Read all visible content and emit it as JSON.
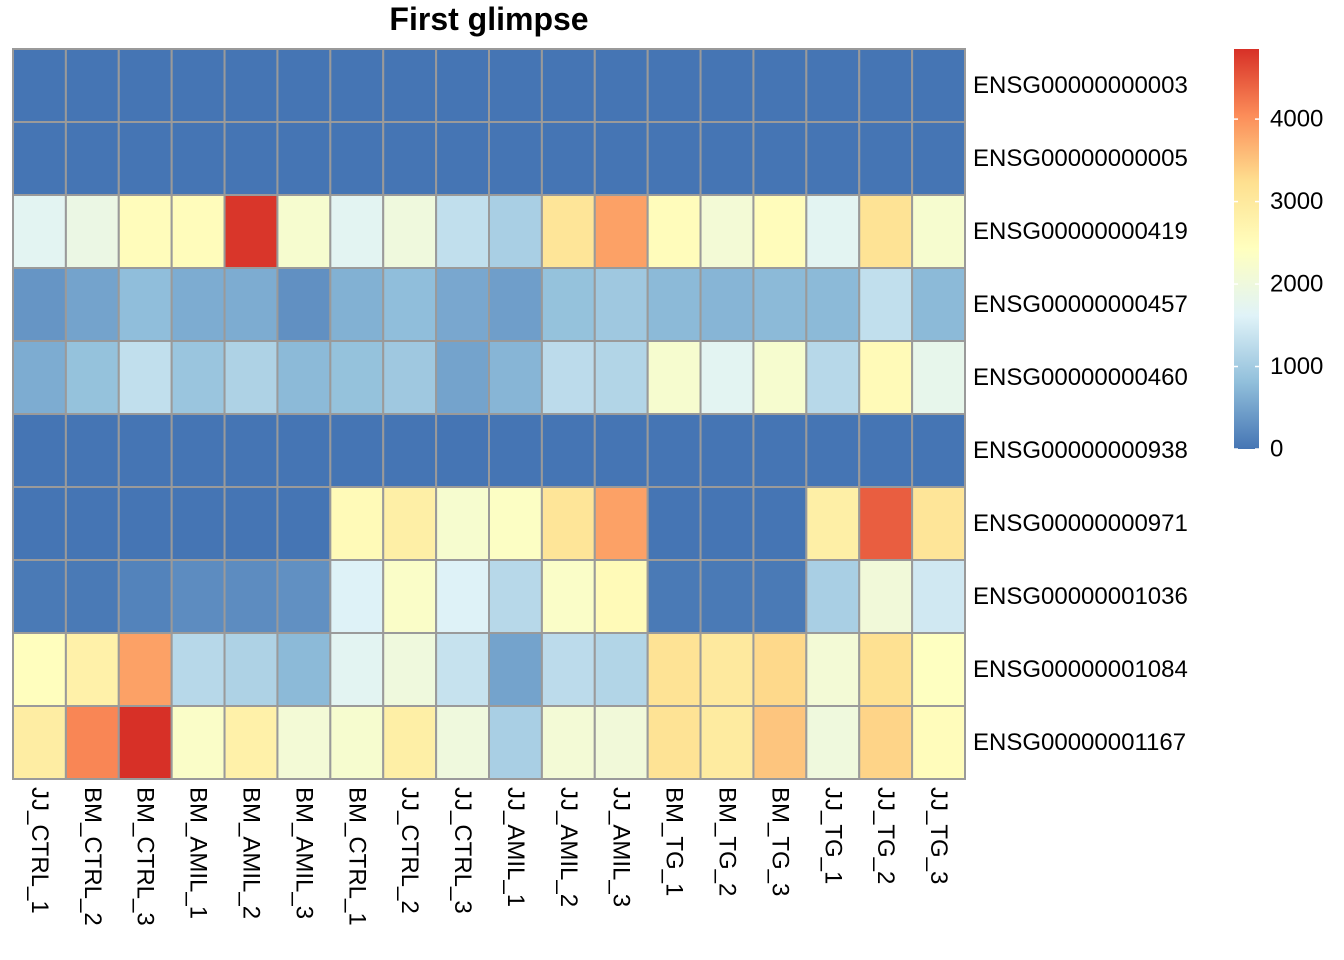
{
  "chart_data": {
    "type": "heatmap",
    "title": "First glimpse",
    "columns": [
      "JJ_CTRL_1",
      "BM_CTRL_2",
      "BM_CTRL_3",
      "BM_AMIL_1",
      "BM_AMIL_2",
      "BM_AMIL_3",
      "BM_CTRL_1",
      "JJ_CTRL_2",
      "JJ_CTRL_3",
      "JJ_AMIL_1",
      "JJ_AMIL_2",
      "JJ_AMIL_3",
      "BM_TG_1",
      "BM_TG_2",
      "BM_TG_3",
      "JJ_TG_1",
      "JJ_TG_2",
      "JJ_TG_3"
    ],
    "rows": [
      "ENSG00000000003",
      "ENSG00000000005",
      "ENSG00000000419",
      "ENSG00000000457",
      "ENSG00000000460",
      "ENSG00000000938",
      "ENSG00000000971",
      "ENSG00000001036",
      "ENSG00000001084",
      "ENSG00000001167"
    ],
    "values": [
      [
        0,
        0,
        0,
        0,
        0,
        0,
        0,
        0,
        0,
        0,
        0,
        0,
        0,
        0,
        0,
        0,
        0,
        0
      ],
      [
        0,
        0,
        0,
        0,
        0,
        0,
        0,
        0,
        0,
        0,
        0,
        0,
        0,
        0,
        0,
        0,
        0,
        0
      ],
      [
        1700,
        1900,
        2500,
        2500,
        4800,
        2200,
        1700,
        2000,
        1300,
        1050,
        3100,
        3850,
        2500,
        2100,
        2500,
        1700,
        3150,
        2200
      ],
      [
        350,
        500,
        800,
        600,
        600,
        300,
        650,
        800,
        550,
        450,
        850,
        950,
        750,
        700,
        750,
        750,
        1300,
        750
      ],
      [
        600,
        850,
        1300,
        900,
        1100,
        750,
        850,
        950,
        500,
        700,
        1250,
        1150,
        2200,
        1700,
        2200,
        1200,
        2550,
        1800
      ],
      [
        0,
        0,
        0,
        0,
        0,
        0,
        0,
        0,
        0,
        0,
        0,
        0,
        0,
        0,
        0,
        0,
        0,
        0
      ],
      [
        0,
        0,
        0,
        0,
        0,
        0,
        2550,
        2850,
        2200,
        2350,
        3100,
        3850,
        0,
        0,
        0,
        2850,
        4450,
        3100
      ],
      [
        50,
        50,
        150,
        250,
        250,
        300,
        1600,
        2300,
        1600,
        1200,
        2300,
        2550,
        50,
        50,
        50,
        1050,
        2050,
        1450
      ],
      [
        2450,
        2800,
        3850,
        1200,
        1100,
        750,
        1700,
        2000,
        1350,
        500,
        1250,
        1150,
        3150,
        3000,
        3300,
        2100,
        3200,
        2400
      ],
      [
        2900,
        4100,
        4850,
        2300,
        2800,
        2100,
        2200,
        2850,
        2000,
        1050,
        2100,
        2050,
        3150,
        2950,
        3500,
        2000,
        3350,
        2500
      ]
    ],
    "colorbar": {
      "min": 0,
      "max": 4850,
      "ticks": [
        0,
        1000,
        2000,
        3000,
        4000
      ]
    },
    "colors": [
      "#4575b4",
      "#91bfdb",
      "#e0f3f8",
      "#ffffbf",
      "#fee090",
      "#fc8d59",
      "#d73027"
    ],
    "grid_color": "#9a9a9a"
  }
}
